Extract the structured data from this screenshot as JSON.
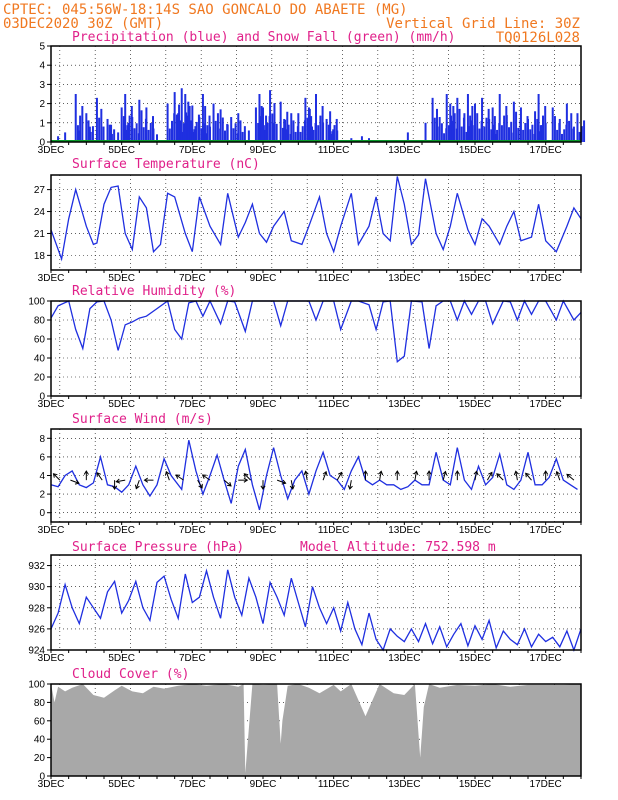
{
  "header": {
    "line1_left": "CPTEC:  045:56W-18:14S  SAO GONCALO DO ABAETE (MG)",
    "line2_left": "03DEC2020 30Z (GMT)",
    "line2_right": "Vertical Grid Line: 30Z",
    "line3_right": "TQ0126L028"
  },
  "colors": {
    "header": "#f07820",
    "title": "#e0208a",
    "series_blue": "#1f2fe0",
    "snow_green": "#0a9a2a",
    "cloud_gray": "#a8a8a8"
  },
  "chart_data": [
    {
      "id": "precip",
      "type": "bar",
      "title": "Precipitation (blue) and Snow Fall (green) (mm/h)",
      "x_ticks": [
        "3DEC",
        "5DEC",
        "7DEC",
        "9DEC",
        "11DEC",
        "13DEC",
        "15DEC",
        "17DEC"
      ],
      "ylim": [
        0,
        5
      ],
      "y_ticks": [
        "0",
        "1",
        "2",
        "3",
        "4",
        "5"
      ],
      "series": [
        {
          "name": "Precipitation",
          "color": "#1f2fe0",
          "x": [
            3.2,
            3.4,
            3.7,
            3.8,
            4.0,
            4.1,
            4.3,
            4.6,
            4.7,
            4.9,
            5.0,
            5.1,
            5.3,
            5.5,
            5.7,
            5.9,
            6.0,
            6.3,
            6.5,
            6.6,
            6.7,
            6.8,
            6.9,
            7.0,
            7.2,
            7.3,
            7.5,
            7.6,
            7.8,
            8.0,
            8.1,
            8.3,
            8.6,
            8.8,
            8.9,
            9.0,
            9.2,
            9.3,
            9.5,
            9.6,
            9.8,
            10.0,
            10.2,
            10.3,
            10.5,
            10.7,
            10.8,
            10.9,
            11.1,
            11.5,
            11.6,
            11.8,
            12.0,
            12.1,
            12.3,
            12.5,
            12.6,
            12.8,
            13.1,
            13.6,
            13.8,
            14.0,
            14.2,
            14.3,
            14.5,
            14.7,
            14.8,
            15.0,
            15.2,
            15.4,
            15.5,
            15.7,
            15.9,
            16.1,
            16.3,
            16.5,
            16.7,
            16.8,
            17.0,
            17.2,
            17.4,
            17.6,
            17.8,
            17.9
          ],
          "values": [
            0.3,
            0.5,
            2.5,
            0.6,
            1.5,
            0.8,
            2.3,
            1.2,
            0.9,
            0.5,
            1.8,
            2.5,
            1.3,
            2.2,
            1.8,
            0.7,
            0.4,
            2.0,
            2.6,
            1.5,
            2.8,
            2.5,
            1.5,
            1.9,
            1.3,
            2.5,
            0.8,
            2.0,
            1.7,
            0.9,
            1.3,
            1.5,
            0.6,
            1.8,
            2.5,
            1.8,
            2.7,
            1.0,
            2.1,
            1.2,
            1.5,
            1.5,
            2.3,
            1.8,
            2.5,
            1.0,
            1.2,
            1.6,
            0.6,
            0.2,
            0.1,
            0.3,
            0.2,
            0.1,
            0.1,
            0.1,
            0.1,
            0.1,
            0.5,
            1.0,
            2.3,
            1.3,
            2.5,
            2.0,
            2.3,
            1.5,
            2.5,
            2.0,
            2.3,
            1.2,
            1.8,
            2.5,
            1.4,
            2.1,
            1.8,
            1.2,
            1.6,
            2.5,
            1.0,
            1.8,
            1.2,
            2.0,
            0.8,
            1.5
          ]
        },
        {
          "name": "Snow Fall",
          "color": "#0a9a2a",
          "x": [
            3,
            18
          ],
          "values": [
            0,
            0
          ]
        }
      ]
    },
    {
      "id": "temp",
      "type": "line",
      "title": "Surface Temperature (nC)",
      "x_ticks": [
        "3DEC",
        "5DEC",
        "7DEC",
        "9DEC",
        "11DEC",
        "13DEC",
        "15DEC",
        "17DEC"
      ],
      "ylim": [
        16,
        29
      ],
      "y_ticks": [
        "18",
        "21",
        "24",
        "27"
      ],
      "x": [
        3.0,
        3.3,
        3.5,
        3.7,
        4.0,
        4.2,
        4.3,
        4.5,
        4.7,
        4.9,
        5.1,
        5.3,
        5.5,
        5.7,
        5.9,
        6.1,
        6.3,
        6.5,
        6.8,
        7.0,
        7.2,
        7.5,
        7.8,
        8.0,
        8.3,
        8.5,
        8.7,
        8.9,
        9.1,
        9.3,
        9.6,
        9.8,
        10.1,
        10.3,
        10.6,
        10.8,
        11.0,
        11.2,
        11.5,
        11.7,
        12.0,
        12.2,
        12.4,
        12.6,
        12.8,
        13.0,
        13.2,
        13.4,
        13.6,
        13.9,
        14.1,
        14.3,
        14.5,
        14.8,
        15.0,
        15.2,
        15.4,
        15.7,
        15.9,
        16.1,
        16.3,
        16.6,
        16.8,
        17.0,
        17.3,
        17.6,
        17.8,
        18.0
      ],
      "values": [
        21.5,
        17.5,
        23,
        27,
        22,
        19.5,
        19.7,
        25,
        27.3,
        27.5,
        21,
        18.8,
        26,
        24.5,
        18.5,
        19.5,
        26.5,
        26,
        21,
        18.5,
        26,
        22,
        19.5,
        26.5,
        20.5,
        22.5,
        25,
        21,
        19.8,
        22,
        24,
        20,
        19.5,
        22,
        26,
        21,
        18.5,
        22,
        26.5,
        19.5,
        22,
        26,
        21,
        20,
        28.8,
        25,
        19.5,
        20.8,
        28.5,
        21,
        18.8,
        22,
        26.5,
        21.5,
        19.5,
        23,
        22,
        19.5,
        22,
        24,
        20,
        20.5,
        25,
        20,
        18.5,
        22,
        24.5,
        23
      ]
    },
    {
      "id": "rh",
      "type": "line",
      "title": "Relative Humidity (%)",
      "x_ticks": [
        "3DEC",
        "5DEC",
        "7DEC",
        "9DEC",
        "11DEC",
        "13DEC",
        "15DEC",
        "17DEC"
      ],
      "ylim": [
        0,
        100
      ],
      "y_ticks": [
        "0",
        "20",
        "40",
        "60",
        "80",
        "100"
      ],
      "x": [
        3.0,
        3.2,
        3.5,
        3.7,
        3.9,
        4.1,
        4.3,
        4.5,
        4.7,
        4.9,
        5.1,
        5.3,
        5.5,
        5.7,
        6.0,
        6.3,
        6.5,
        6.7,
        6.9,
        7.1,
        7.3,
        7.5,
        7.8,
        8.0,
        8.2,
        8.5,
        8.7,
        9.0,
        9.3,
        9.5,
        9.7,
        10.0,
        10.3,
        10.5,
        10.7,
        11.0,
        11.2,
        11.5,
        11.7,
        12.0,
        12.2,
        12.4,
        12.6,
        12.8,
        13.0,
        13.2,
        13.5,
        13.7,
        13.9,
        14.1,
        14.3,
        14.5,
        14.7,
        14.9,
        15.1,
        15.3,
        15.5,
        15.8,
        16.0,
        16.2,
        16.4,
        16.6,
        16.8,
        17.0,
        17.3,
        17.5,
        17.8,
        18.0
      ],
      "values": [
        82,
        95,
        100,
        70,
        50,
        92,
        99,
        100,
        80,
        48,
        75,
        78,
        82,
        84,
        92,
        100,
        70,
        60,
        98,
        100,
        84,
        100,
        76,
        100,
        99,
        68,
        100,
        100,
        100,
        74,
        100,
        100,
        100,
        80,
        100,
        100,
        70,
        100,
        100,
        96,
        70,
        99,
        100,
        36,
        42,
        100,
        99,
        50,
        95,
        100,
        100,
        80,
        100,
        86,
        100,
        100,
        76,
        100,
        99,
        80,
        100,
        86,
        100,
        100,
        80,
        100,
        80,
        88
      ]
    },
    {
      "id": "wind",
      "type": "line",
      "title": "Surface Wind (m/s)",
      "x_ticks": [
        "3DEC",
        "5DEC",
        "7DEC",
        "9DEC",
        "11DEC",
        "13DEC",
        "15DEC",
        "17DEC"
      ],
      "ylim": [
        -1,
        9
      ],
      "y_ticks": [
        "0",
        "2",
        "4",
        "6",
        "8"
      ],
      "x": [
        3.0,
        3.2,
        3.4,
        3.6,
        3.8,
        4.0,
        4.2,
        4.4,
        4.6,
        4.8,
        5.0,
        5.2,
        5.4,
        5.6,
        5.8,
        6.0,
        6.2,
        6.4,
        6.7,
        6.9,
        7.1,
        7.3,
        7.5,
        7.7,
        7.9,
        8.1,
        8.3,
        8.5,
        8.7,
        8.9,
        9.1,
        9.3,
        9.5,
        9.7,
        9.9,
        10.1,
        10.3,
        10.5,
        10.7,
        10.9,
        11.1,
        11.3,
        11.5,
        11.7,
        11.9,
        12.1,
        12.3,
        12.5,
        12.7,
        12.9,
        13.1,
        13.3,
        13.5,
        13.7,
        13.9,
        14.1,
        14.3,
        14.5,
        14.7,
        14.9,
        15.1,
        15.3,
        15.5,
        15.7,
        15.9,
        16.1,
        16.3,
        16.5,
        16.7,
        16.9,
        17.1,
        17.3,
        17.5,
        17.7,
        17.9
      ],
      "values": [
        3.0,
        2.8,
        4.0,
        4.5,
        3.0,
        2.7,
        3.2,
        6.0,
        3.0,
        2.8,
        2.2,
        3.0,
        5.0,
        3.0,
        1.8,
        3.0,
        5.8,
        4.0,
        2.5,
        7.8,
        4.5,
        2.0,
        4.0,
        6.2,
        3.5,
        1.0,
        5.0,
        6.8,
        3.0,
        0.3,
        4.0,
        7.0,
        4.0,
        1.5,
        3.5,
        4.5,
        2.0,
        4.5,
        6.5,
        4.0,
        3.5,
        2.5,
        4.5,
        6.0,
        3.5,
        3.0,
        3.5,
        3.0,
        3.0,
        2.5,
        2.8,
        3.5,
        3.0,
        3.0,
        6.5,
        3.5,
        3.0,
        7.0,
        3.5,
        2.5,
        5.0,
        3.0,
        3.8,
        6.3,
        3.0,
        2.5,
        3.5,
        6.5,
        3.0,
        3.0,
        3.8,
        5.8,
        3.5,
        3.0,
        2.5
      ],
      "wind_arrows": [
        {
          "x": 3.25,
          "angle": 225
        },
        {
          "x": 3.55,
          "angle": 20
        },
        {
          "x": 4.0,
          "angle": 270
        },
        {
          "x": 4.45,
          "angle": 235
        },
        {
          "x": 4.8,
          "angle": 90
        },
        {
          "x": 5.1,
          "angle": 170
        },
        {
          "x": 5.5,
          "angle": 110
        },
        {
          "x": 5.9,
          "angle": 180
        },
        {
          "x": 6.35,
          "angle": 250
        },
        {
          "x": 6.75,
          "angle": 215
        },
        {
          "x": 7.15,
          "angle": 60
        },
        {
          "x": 7.5,
          "angle": 215
        },
        {
          "x": 7.9,
          "angle": 40
        },
        {
          "x": 8.3,
          "angle": 0
        },
        {
          "x": 8.65,
          "angle": 225
        },
        {
          "x": 9.0,
          "angle": 90
        },
        {
          "x": 9.4,
          "angle": 20
        },
        {
          "x": 9.8,
          "angle": 80
        },
        {
          "x": 10.25,
          "angle": 260
        },
        {
          "x": 10.7,
          "angle": 290
        },
        {
          "x": 11.1,
          "angle": 300
        },
        {
          "x": 11.5,
          "angle": 100
        },
        {
          "x": 11.9,
          "angle": 270
        },
        {
          "x": 12.3,
          "angle": 280
        },
        {
          "x": 12.8,
          "angle": 270
        },
        {
          "x": 13.3,
          "angle": 280
        },
        {
          "x": 13.7,
          "angle": 270
        },
        {
          "x": 14.1,
          "angle": 285
        },
        {
          "x": 14.5,
          "angle": 270
        },
        {
          "x": 15.0,
          "angle": 280
        },
        {
          "x": 15.35,
          "angle": 300
        },
        {
          "x": 15.8,
          "angle": 225
        },
        {
          "x": 16.2,
          "angle": 260
        },
        {
          "x": 16.6,
          "angle": 230
        },
        {
          "x": 17.0,
          "angle": 270
        },
        {
          "x": 17.4,
          "angle": 250
        },
        {
          "x": 17.8,
          "angle": 220
        }
      ]
    },
    {
      "id": "pressure",
      "type": "line",
      "title": "Surface Pressure (hPa)",
      "annotation": "Model Altitude: 752.598 m",
      "x_ticks": [
        "3DEC",
        "5DEC",
        "7DEC",
        "9DEC",
        "11DEC",
        "13DEC",
        "15DEC",
        "17DEC"
      ],
      "ylim": [
        924,
        933
      ],
      "y_ticks": [
        "924",
        "926",
        "928",
        "930",
        "932"
      ],
      "x": [
        3.0,
        3.2,
        3.4,
        3.6,
        3.8,
        4.0,
        4.2,
        4.4,
        4.6,
        4.8,
        5.0,
        5.2,
        5.4,
        5.6,
        5.8,
        6.0,
        6.2,
        6.4,
        6.6,
        6.8,
        7.0,
        7.2,
        7.4,
        7.6,
        7.8,
        8.0,
        8.2,
        8.4,
        8.6,
        8.8,
        9.0,
        9.2,
        9.4,
        9.6,
        9.8,
        10.0,
        10.2,
        10.4,
        10.6,
        10.8,
        11.0,
        11.2,
        11.4,
        11.6,
        11.8,
        12.0,
        12.2,
        12.4,
        12.6,
        12.8,
        13.0,
        13.2,
        13.4,
        13.6,
        13.8,
        14.0,
        14.2,
        14.4,
        14.6,
        14.8,
        15.0,
        15.2,
        15.4,
        15.6,
        15.8,
        16.0,
        16.2,
        16.4,
        16.6,
        16.8,
        17.0,
        17.2,
        17.4,
        17.6,
        17.8,
        18.0
      ],
      "values": [
        926,
        927.5,
        930.2,
        928,
        926.5,
        929,
        928,
        927,
        929.5,
        930.5,
        927.5,
        928.7,
        930.5,
        928,
        926.8,
        930.4,
        931,
        928.8,
        927,
        931.2,
        928.5,
        929,
        931.5,
        929,
        927,
        931.6,
        929,
        927.3,
        930.8,
        929,
        926.5,
        930.4,
        929,
        927.3,
        930.8,
        928.5,
        926.2,
        930,
        928,
        926.5,
        928,
        925.8,
        928.5,
        926,
        924.5,
        927.5,
        925,
        924,
        926,
        925.3,
        924.8,
        926,
        924.8,
        926.5,
        924.6,
        926.2,
        924.3,
        925.5,
        926.5,
        924.4,
        926.3,
        925,
        926.8,
        924.2,
        925.8,
        925,
        924.5,
        926,
        924.3,
        925.5,
        924.8,
        925.2,
        924.3,
        925.8,
        924,
        926
      ]
    },
    {
      "id": "cloud",
      "type": "area",
      "title": "Cloud Cover (%)",
      "x_ticks": [
        "3DEC",
        "5DEC",
        "7DEC",
        "9DEC",
        "11DEC",
        "13DEC",
        "15DEC",
        "17DEC"
      ],
      "ylim": [
        0,
        100
      ],
      "y_ticks": [
        "0",
        "20",
        "40",
        "60",
        "80",
        "100"
      ],
      "x": [
        3.0,
        3.1,
        3.2,
        3.4,
        3.6,
        3.9,
        4.2,
        4.5,
        4.8,
        5.0,
        5.3,
        5.6,
        5.9,
        6.2,
        6.6,
        7.0,
        7.4,
        7.9,
        8.3,
        8.45,
        8.5,
        8.7,
        9.0,
        9.4,
        9.5,
        9.55,
        9.7,
        10.0,
        10.3,
        10.6,
        11.0,
        11.2,
        11.5,
        11.9,
        12.3,
        12.7,
        13.0,
        13.3,
        13.45,
        13.55,
        13.7,
        14.0,
        14.5,
        15.0,
        15.5,
        16.0,
        16.5,
        17.0,
        17.5,
        18.0
      ],
      "values": [
        100,
        80,
        97,
        92,
        96,
        100,
        88,
        85,
        93,
        98,
        92,
        90,
        97,
        95,
        98,
        100,
        98,
        100,
        97,
        100,
        3,
        100,
        99,
        100,
        35,
        60,
        98,
        100,
        96,
        90,
        99,
        92,
        100,
        65,
        100,
        90,
        88,
        100,
        20,
        75,
        100,
        96,
        99,
        98,
        100,
        97,
        99,
        99,
        99,
        100
      ]
    }
  ]
}
